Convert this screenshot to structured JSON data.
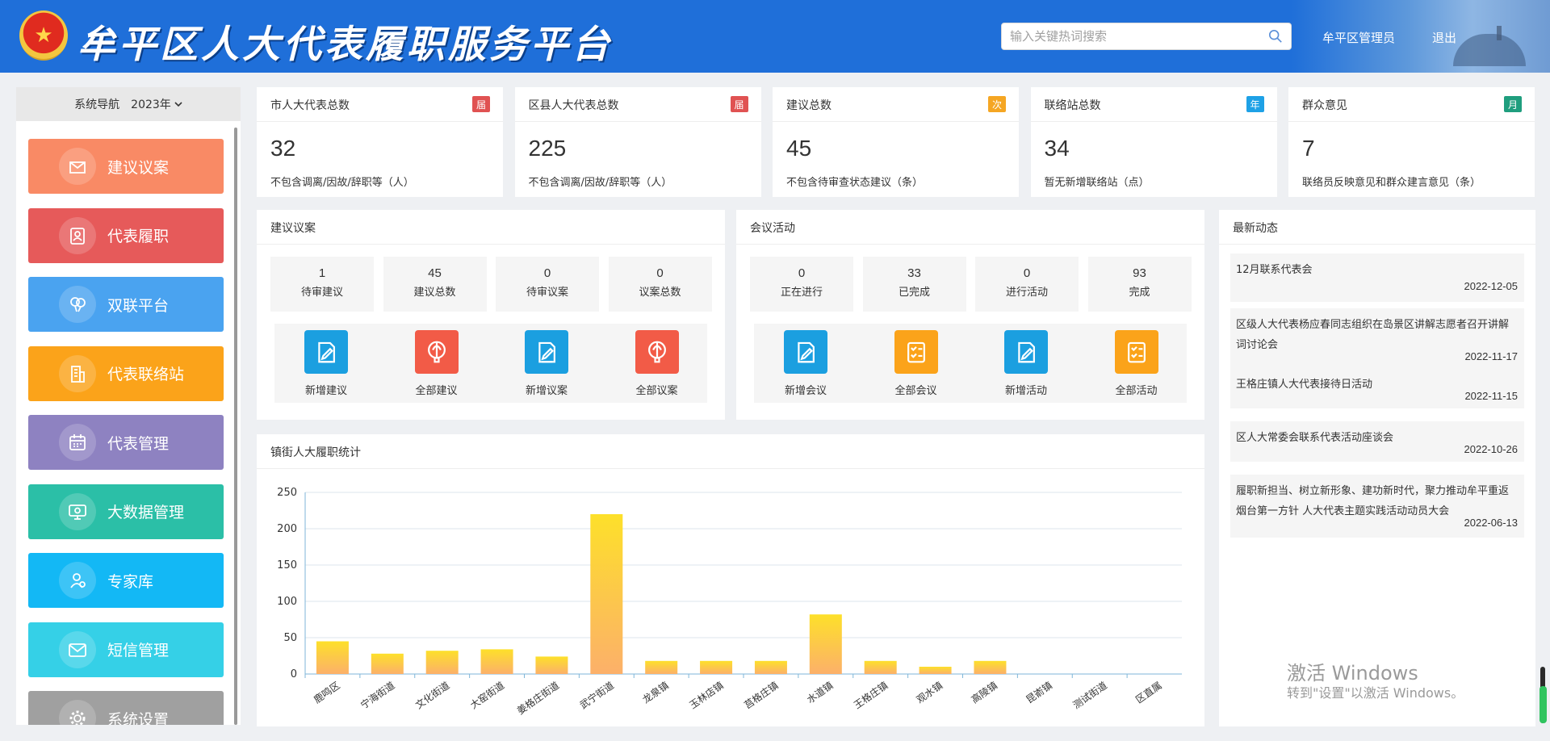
{
  "header": {
    "title": "牟平区人大代表履职服务平台",
    "search_placeholder": "输入关键热词搜索",
    "user": "牟平区管理员",
    "logout": "退出"
  },
  "sidebar": {
    "nav_label": "系统导航",
    "year": "2023年",
    "items": [
      {
        "label": "建议议案",
        "color": "#f98a65",
        "icon": "envelope-icon"
      },
      {
        "label": "代表履职",
        "color": "#e65a5a",
        "icon": "person-card-icon"
      },
      {
        "label": "双联平台",
        "color": "#4aa3f0",
        "icon": "balloons-icon"
      },
      {
        "label": "代表联络站",
        "color": "#fba31a",
        "icon": "building-icon"
      },
      {
        "label": "代表管理",
        "color": "#8e82c1",
        "icon": "calendar-icon"
      },
      {
        "label": "大数据管理",
        "color": "#2bbfa7",
        "icon": "monitor-icon"
      },
      {
        "label": "专家库",
        "color": "#13b8f5",
        "icon": "user-group-icon"
      },
      {
        "label": "短信管理",
        "color": "#35d0e7",
        "icon": "mail-icon"
      },
      {
        "label": "系统设置",
        "color": "#a0a0a0",
        "icon": "gear-icon"
      }
    ]
  },
  "stats": [
    {
      "title": "市人大代表总数",
      "badge": "届",
      "badge_color": "#e05252",
      "value": "32",
      "desc": "不包含调离/因故/辞职等（人）"
    },
    {
      "title": "区县人大代表总数",
      "badge": "届",
      "badge_color": "#e05252",
      "value": "225",
      "desc": "不包含调离/因故/辞职等（人）"
    },
    {
      "title": "建议总数",
      "badge": "次",
      "badge_color": "#f5a623",
      "value": "45",
      "desc": "不包含待审查状态建议（条）"
    },
    {
      "title": "联络站总数",
      "badge": "年",
      "badge_color": "#1ea1e6",
      "value": "34",
      "desc": "暂无新增联络站（点）"
    },
    {
      "title": "群众意见",
      "badge": "月",
      "badge_color": "#1f9e7e",
      "value": "7",
      "desc": "联络员反映意见和群众建言意见（条）"
    }
  ],
  "proposals": {
    "title": "建议议案",
    "mini": [
      {
        "value": "1",
        "label": "待审建议"
      },
      {
        "value": "45",
        "label": "建议总数"
      },
      {
        "value": "0",
        "label": "待审议案"
      },
      {
        "value": "0",
        "label": "议案总数"
      }
    ],
    "actions": [
      {
        "label": "新增建议",
        "color": "#1b9fe0",
        "icon": "document-pen-icon"
      },
      {
        "label": "全部建议",
        "color": "#f25b47",
        "icon": "balloon-icon"
      },
      {
        "label": "新增议案",
        "color": "#1b9fe0",
        "icon": "document-pen-icon"
      },
      {
        "label": "全部议案",
        "color": "#f25b47",
        "icon": "balloon-icon"
      }
    ]
  },
  "meetings": {
    "title": "会议活动",
    "mini": [
      {
        "value": "0",
        "label": "正在进行"
      },
      {
        "value": "33",
        "label": "已完成"
      },
      {
        "value": "0",
        "label": "进行活动"
      },
      {
        "value": "93",
        "label": "完成"
      }
    ],
    "actions": [
      {
        "label": "新增会议",
        "color": "#1b9fe0",
        "icon": "document-pen-icon"
      },
      {
        "label": "全部会议",
        "color": "#fba31a",
        "icon": "checklist-icon"
      },
      {
        "label": "新增活动",
        "color": "#1b9fe0",
        "icon": "document-pen-icon"
      },
      {
        "label": "全部活动",
        "color": "#fba31a",
        "icon": "checklist-icon"
      }
    ]
  },
  "news": {
    "title": "最新动态",
    "items": [
      {
        "title": "12月联系代表会",
        "date": "2022-12-05"
      },
      {
        "title": "区级人大代表杨应春同志组织在岛景区讲解志愿者召开讲解词讨论会",
        "date": "2022-11-17"
      },
      {
        "title": "王格庄镇人大代表接待日活动",
        "date": "2022-11-15"
      },
      {
        "title": "区人大常委会联系代表活动座谈会",
        "date": "2022-10-26"
      },
      {
        "title": "履职新担当、树立新形象、建功新时代，聚力推动牟平重返烟台第一方针 人大代表主题实践活动动员大会",
        "date": "2022-06-13"
      }
    ]
  },
  "chart": {
    "title": "镇街人大履职统计"
  },
  "chart_data": {
    "type": "bar",
    "title": "镇街人大履职统计",
    "categories": [
      "鹿鸣区",
      "宁海街道",
      "文化街道",
      "大窑街道",
      "姜格庄街道",
      "武宁街道",
      "龙泉镇",
      "玉林店镇",
      "莒格庄镇",
      "水道镇",
      "王格庄镇",
      "观水镇",
      "高陵镇",
      "昆嵛镇",
      "测试街道",
      "区直属"
    ],
    "values": [
      45,
      28,
      32,
      34,
      24,
      220,
      18,
      18,
      18,
      82,
      18,
      10,
      18,
      0,
      0,
      0
    ],
    "ylim": [
      0,
      250
    ],
    "yticks": [
      0,
      50,
      100,
      150,
      200,
      250
    ],
    "grid": true,
    "bar_gradient": [
      "#fde02a",
      "#fcb06a"
    ]
  },
  "watermark": {
    "line1": "激活 Windows",
    "line2": "转到\"设置\"以激活 Windows。"
  }
}
